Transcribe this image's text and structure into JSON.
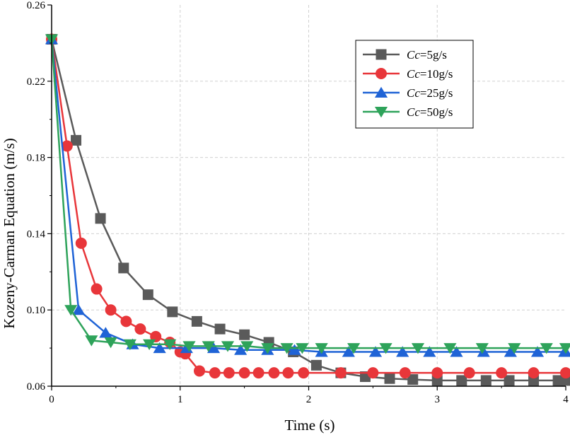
{
  "chart_data": {
    "type": "line",
    "title": "",
    "xlabel": "Time (s)",
    "ylabel": "Kozeny-Carman Equation (m/s)",
    "xlim": [
      0,
      4
    ],
    "ylim": [
      0.06,
      0.26
    ],
    "xticks": [
      0,
      1,
      2,
      3,
      4
    ],
    "yticks": [
      0.06,
      0.1,
      0.14,
      0.18,
      0.22,
      0.26
    ],
    "xtick_labels": [
      "0",
      "1",
      "2",
      "3",
      "4"
    ],
    "ytick_labels": [
      "0.06",
      "0.10",
      "0.14",
      "0.18",
      "0.22",
      "0.26"
    ],
    "grid": true,
    "legend_position": "top-right",
    "series": [
      {
        "name": "Cc=5g/s",
        "legend_var": "Cc",
        "legend_rest": "=5g/s",
        "color": "#5a5a5a",
        "marker": "square",
        "x": [
          0,
          0.19,
          0.38,
          0.56,
          0.75,
          0.94,
          1.13,
          1.31,
          1.5,
          1.69,
          1.88,
          2.06,
          2.25,
          2.44,
          2.63,
          2.81,
          3.0,
          3.19,
          3.38,
          3.56,
          3.75,
          3.94,
          4.0
        ],
        "y": [
          0.242,
          0.189,
          0.148,
          0.122,
          0.108,
          0.099,
          0.094,
          0.09,
          0.087,
          0.083,
          0.078,
          0.071,
          0.067,
          0.065,
          0.064,
          0.0635,
          0.063,
          0.063,
          0.063,
          0.063,
          0.063,
          0.063,
          0.063
        ]
      },
      {
        "name": "Cc=10g/s",
        "legend_var": "Cc",
        "legend_rest": "=10g/s",
        "color": "#e8363a",
        "marker": "circle",
        "x": [
          0,
          0.12,
          0.23,
          0.35,
          0.46,
          0.58,
          0.69,
          0.81,
          0.92,
          1.0,
          1.04,
          1.15,
          1.27,
          1.38,
          1.5,
          1.61,
          1.73,
          1.84,
          1.96,
          2.25,
          2.5,
          2.75,
          3.0,
          3.25,
          3.5,
          3.75,
          4.0
        ],
        "y": [
          0.242,
          0.186,
          0.135,
          0.111,
          0.1,
          0.094,
          0.09,
          0.086,
          0.083,
          0.078,
          0.077,
          0.068,
          0.067,
          0.067,
          0.067,
          0.067,
          0.067,
          0.067,
          0.067,
          0.067,
          0.067,
          0.067,
          0.067,
          0.067,
          0.067,
          0.067,
          0.067
        ]
      },
      {
        "name": "Cc=25g/s",
        "legend_var": "Cc",
        "legend_rest": "=25g/s",
        "color": "#1f63d6",
        "marker": "triangle-up",
        "x": [
          0,
          0.21,
          0.42,
          0.63,
          0.84,
          1.05,
          1.26,
          1.47,
          1.68,
          1.89,
          2.1,
          2.31,
          2.52,
          2.73,
          2.94,
          3.15,
          3.36,
          3.57,
          3.78,
          3.99,
          4.0
        ],
        "y": [
          0.242,
          0.1,
          0.088,
          0.082,
          0.08,
          0.08,
          0.08,
          0.079,
          0.079,
          0.079,
          0.078,
          0.078,
          0.078,
          0.078,
          0.078,
          0.078,
          0.078,
          0.078,
          0.078,
          0.078,
          0.078
        ]
      },
      {
        "name": "Cc=50g/s",
        "legend_var": "Cc",
        "legend_rest": "=50g/s",
        "color": "#2ea35a",
        "marker": "triangle-down",
        "x": [
          0,
          0.15,
          0.31,
          0.46,
          0.61,
          0.76,
          0.92,
          1.07,
          1.22,
          1.37,
          1.52,
          1.68,
          1.83,
          1.95,
          2.1,
          2.35,
          2.6,
          2.85,
          3.1,
          3.35,
          3.6,
          3.85,
          4.0
        ],
        "y": [
          0.242,
          0.1,
          0.084,
          0.083,
          0.082,
          0.082,
          0.082,
          0.081,
          0.081,
          0.081,
          0.081,
          0.08,
          0.08,
          0.08,
          0.08,
          0.08,
          0.08,
          0.08,
          0.08,
          0.08,
          0.08,
          0.08,
          0.08
        ]
      }
    ]
  }
}
